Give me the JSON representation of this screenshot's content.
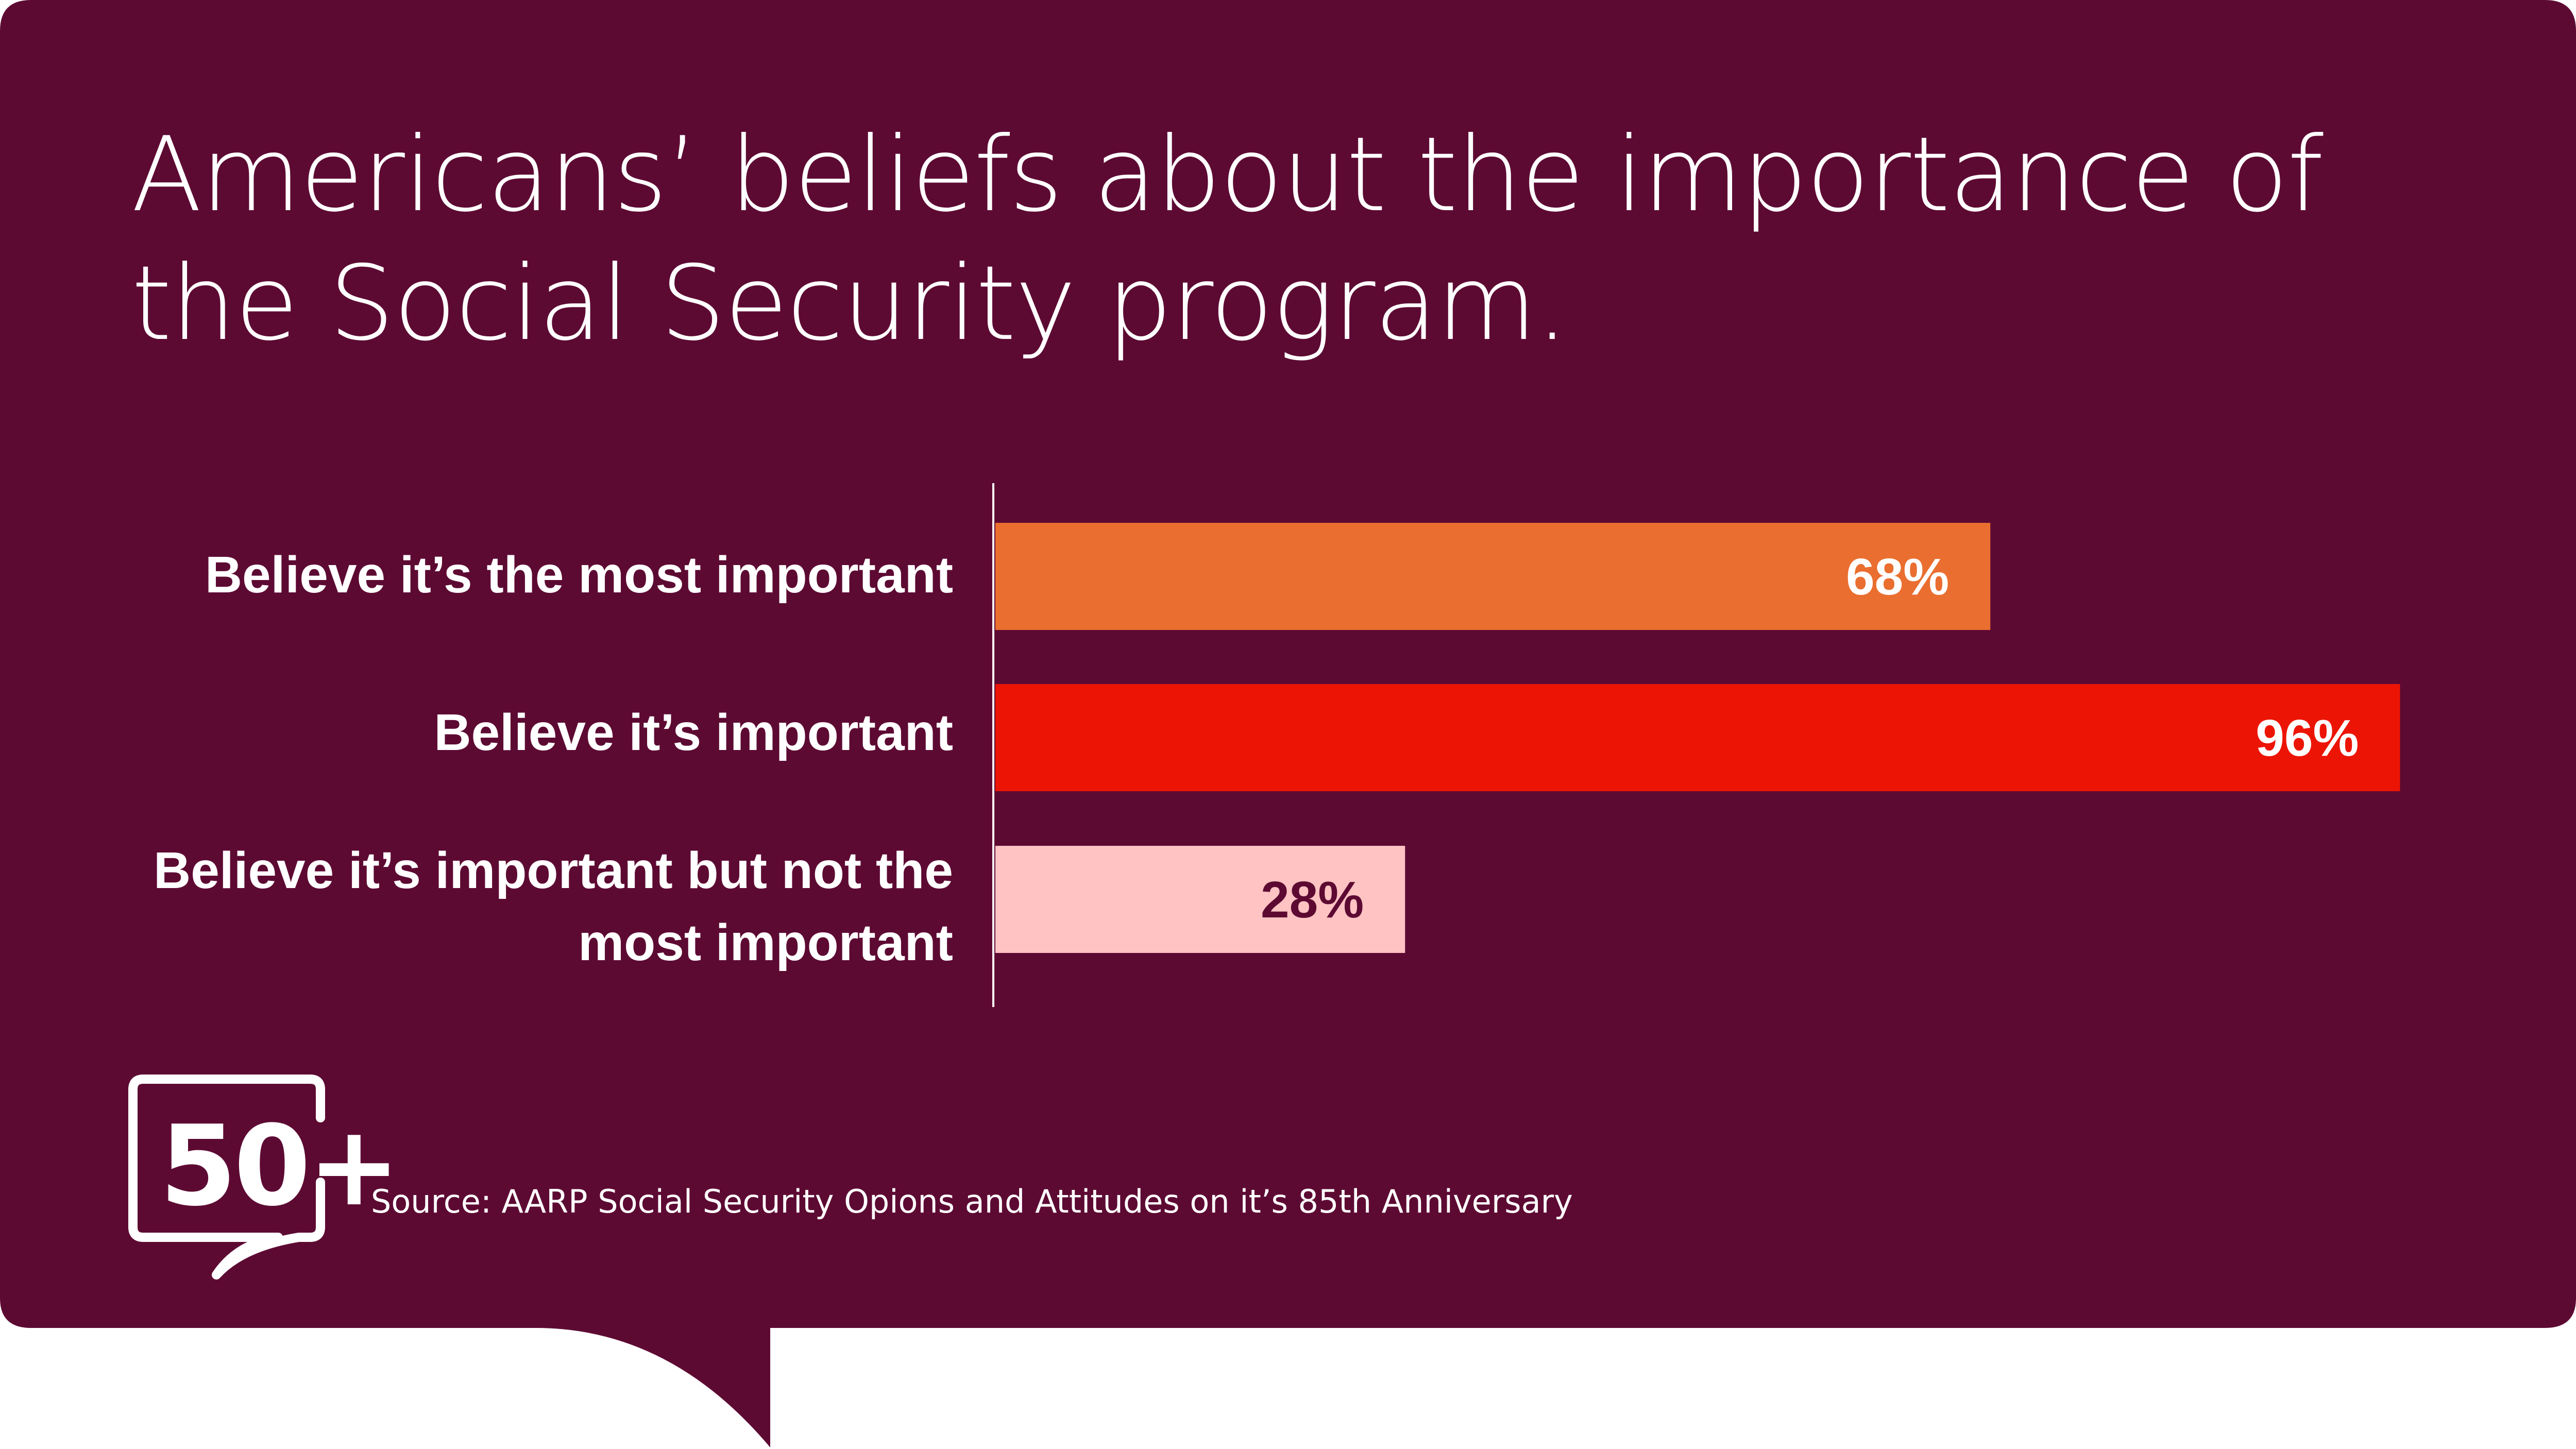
{
  "title_lines": [
    "Americans’ beliefs about the importance of",
    "the Social Security program."
  ],
  "source": "Source: AARP Social Security Opions and Attitudes on it’s 85th Anniversary",
  "logo_text": "50+",
  "colors": {
    "background": "#5d0a33",
    "text": "#ffffff",
    "bar_most_important": "#ea6e2f",
    "bar_important": "#ec1505",
    "bar_not_most": "#ffc3c3",
    "dark_label": "#5d0a33"
  },
  "chart_data": {
    "type": "bar",
    "orientation": "horizontal",
    "categories": [
      "Believe it’s the most important",
      "Believe it’s important",
      "Believe it’s important but not the most important"
    ],
    "category_lines": [
      [
        "Believe it’s the most important"
      ],
      [
        "Believe it’s important"
      ],
      [
        "Believe it’s important but not the",
        "most important"
      ]
    ],
    "values": [
      68,
      96,
      28
    ],
    "value_labels": [
      "68%",
      "96%",
      "28%"
    ],
    "bar_colors": [
      "#ea6e2f",
      "#ec1505",
      "#ffc3c3"
    ],
    "label_colors": [
      "#ffffff",
      "#ffffff",
      "#5d0a33"
    ],
    "unit": "%",
    "xlim": [
      0,
      100
    ],
    "grid": false,
    "legend": "none"
  }
}
